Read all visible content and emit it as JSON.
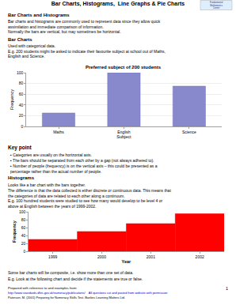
{
  "title": "Bar Charts, Histograms,  Line Graphs & Pie Charts",
  "annotations": [
    {
      "text": "Fundamental\nMathematics\nCenter",
      "color": "#333366"
    },
    {
      "text": "Bar Charts and Histograms"
    },
    {
      "text": "Bar charts and histograms are commonly used to represent data since they allow quick\nassimilation and immediate comparison of information.\nNormally the bars are vertical, but may sometimes be horizontal."
    },
    {
      "text": "Bar Charts"
    },
    {
      "text": "Used with categorical data.\nE.g. 200 students might be asked to indicate their favourite subject at school out of Maths,\nEnglish and Science."
    },
    {
      "text": "Key point"
    },
    {
      "text": "▪ Categories are usually on the horizontal axis."
    },
    {
      "text": "▪ The bars should be separated from each other by a gap (not always adhered to)."
    },
    {
      "text": "▪ Number of people (frequency) is on the vertical axis – this could be presented as a\npercentage rather than the actual number of people."
    },
    {
      "text": "Histograms"
    },
    {
      "text": "Looks like a bar chart with the bars together."
    },
    {
      "text": "The difference is that the data collected is either discrete or continuous data. This means that\nthe categories of data are related to each other along a continuum.\nE.g. 100 hundred students were studied to see how many would develop to be level 4 or\nabove at English between the years of 1999-2002."
    },
    {
      "text": "Some bar charts will be composite, i.e. show more than one set of data."
    },
    {
      "text": "E.g. Look at the following chart and decide if the statements are true or false."
    },
    {
      "text": "Prepared with reference to and examples from:"
    },
    {
      "text": "http://www.standards.dfes.gov.uk/numeracy/publications/    All questions cut and pasted from website with permission",
      "color": "#0000cc"
    },
    {
      "text": "Paterson, M. (2001) Preparing for Numeracy Skills Test. Bankes Learning Matters Ltd."
    },
    {
      "text": "1"
    }
  ],
  "chart_data": [
    {
      "type": "bar",
      "title": "Preferred subject of 200 students",
      "xlabel": "Subject",
      "ylabel": "Frequency",
      "categories": [
        "Maths",
        "English",
        "Science"
      ],
      "values": [
        25,
        100,
        75
      ],
      "color": "#8888cc",
      "ylim": [
        0,
        100
      ],
      "yticks": [
        0,
        20,
        40,
        60,
        80,
        100
      ],
      "grid": true
    },
    {
      "type": "histogram",
      "xlabel": "Year",
      "ylabel": "Frequency",
      "categories": [
        "1999",
        "2000",
        "2001",
        "2002"
      ],
      "values": [
        30,
        50,
        70,
        95
      ],
      "color": "#ff0000",
      "ylim": [
        0,
        100
      ],
      "yticks": [
        0,
        20,
        40,
        60,
        80,
        100
      ],
      "grid": false
    }
  ]
}
